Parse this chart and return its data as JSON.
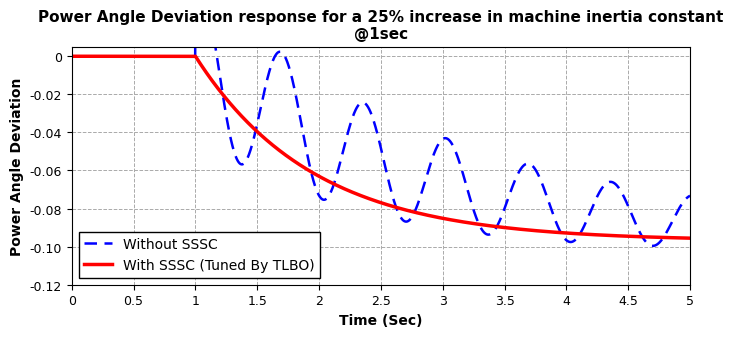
{
  "title_line1": "Power Angle Deviation response for a 25% increase in machine inertia constant",
  "title_line2": "@1sec",
  "xlabel": "Time (Sec)",
  "ylabel": "Power Angle Deviation",
  "xlim": [
    0,
    5
  ],
  "ylim": [
    -0.12,
    0.005
  ],
  "yticks": [
    0,
    -0.02,
    -0.04,
    -0.06,
    -0.08,
    -0.1,
    -0.12
  ],
  "xticks": [
    0,
    0.5,
    1.0,
    1.5,
    2.0,
    2.5,
    3.0,
    3.5,
    4.0,
    4.5,
    5.0
  ],
  "color_without": "#0000FF",
  "color_with": "#FF0000",
  "bg_color": "#FFFFFF",
  "legend_without": "Without SSSC",
  "legend_with": "With SSSC (Tuned By TLBO)",
  "title_fontsize": 11,
  "label_fontsize": 10,
  "legend_fontsize": 10
}
